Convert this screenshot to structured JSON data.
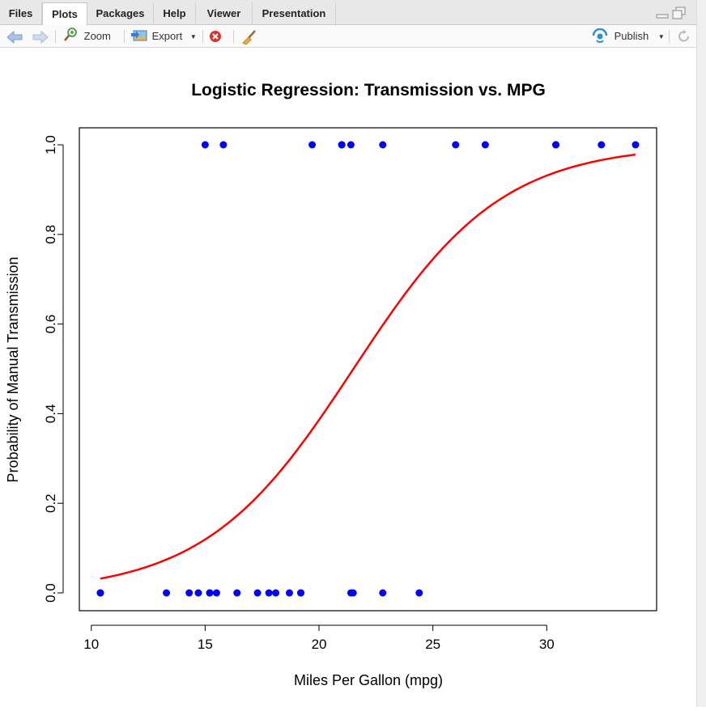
{
  "tabs": [
    {
      "label": "Files",
      "active": false
    },
    {
      "label": "Plots",
      "active": true
    },
    {
      "label": "Packages",
      "active": false
    },
    {
      "label": "Help",
      "active": false
    },
    {
      "label": "Viewer",
      "active": false
    },
    {
      "label": "Presentation",
      "active": false
    }
  ],
  "toolbar": {
    "zoom_label": "Zoom",
    "export_label": "Export",
    "publish_label": "Publish"
  },
  "colors": {
    "points": "#0000ff",
    "curve": "#ff0000"
  },
  "chart_data": {
    "type": "scatter",
    "title": "Logistic Regression: Transmission vs. MPG",
    "xlabel": "Miles Per Gallon (mpg)",
    "ylabel": "Probability of Manual Transmission",
    "xlim": [
      10.4,
      33.9
    ],
    "ylim": [
      0,
      1
    ],
    "x_ticks": [
      10,
      15,
      20,
      25,
      30
    ],
    "x_tick_labels": [
      "10",
      "15",
      "20",
      "25",
      "30"
    ],
    "y_ticks": [
      0,
      0.2,
      0.4,
      0.6,
      0.8,
      1
    ],
    "y_tick_labels": [
      "0.0",
      "0.2",
      "0.4",
      "0.6",
      "0.8",
      "1.0"
    ],
    "series": [
      {
        "name": "observed",
        "kind": "points",
        "x": [
          21.0,
          21.0,
          22.8,
          21.4,
          18.7,
          18.1,
          14.3,
          24.4,
          22.8,
          19.2,
          17.8,
          16.4,
          17.3,
          15.2,
          10.4,
          10.4,
          14.7,
          32.4,
          30.4,
          33.9,
          21.5,
          15.5,
          15.2,
          13.3,
          19.2,
          27.3,
          26.0,
          30.4,
          15.8,
          19.7,
          15.0,
          21.4
        ],
        "y": [
          1,
          1,
          1,
          0,
          0,
          0,
          0,
          0,
          0,
          0,
          0,
          0,
          0,
          0,
          0,
          0,
          0,
          1,
          1,
          1,
          0,
          0,
          0,
          0,
          0,
          1,
          1,
          1,
          1,
          1,
          1,
          1
        ]
      },
      {
        "name": "fitted",
        "kind": "curve",
        "intercept": -6.604,
        "slope": 0.307
      }
    ]
  }
}
